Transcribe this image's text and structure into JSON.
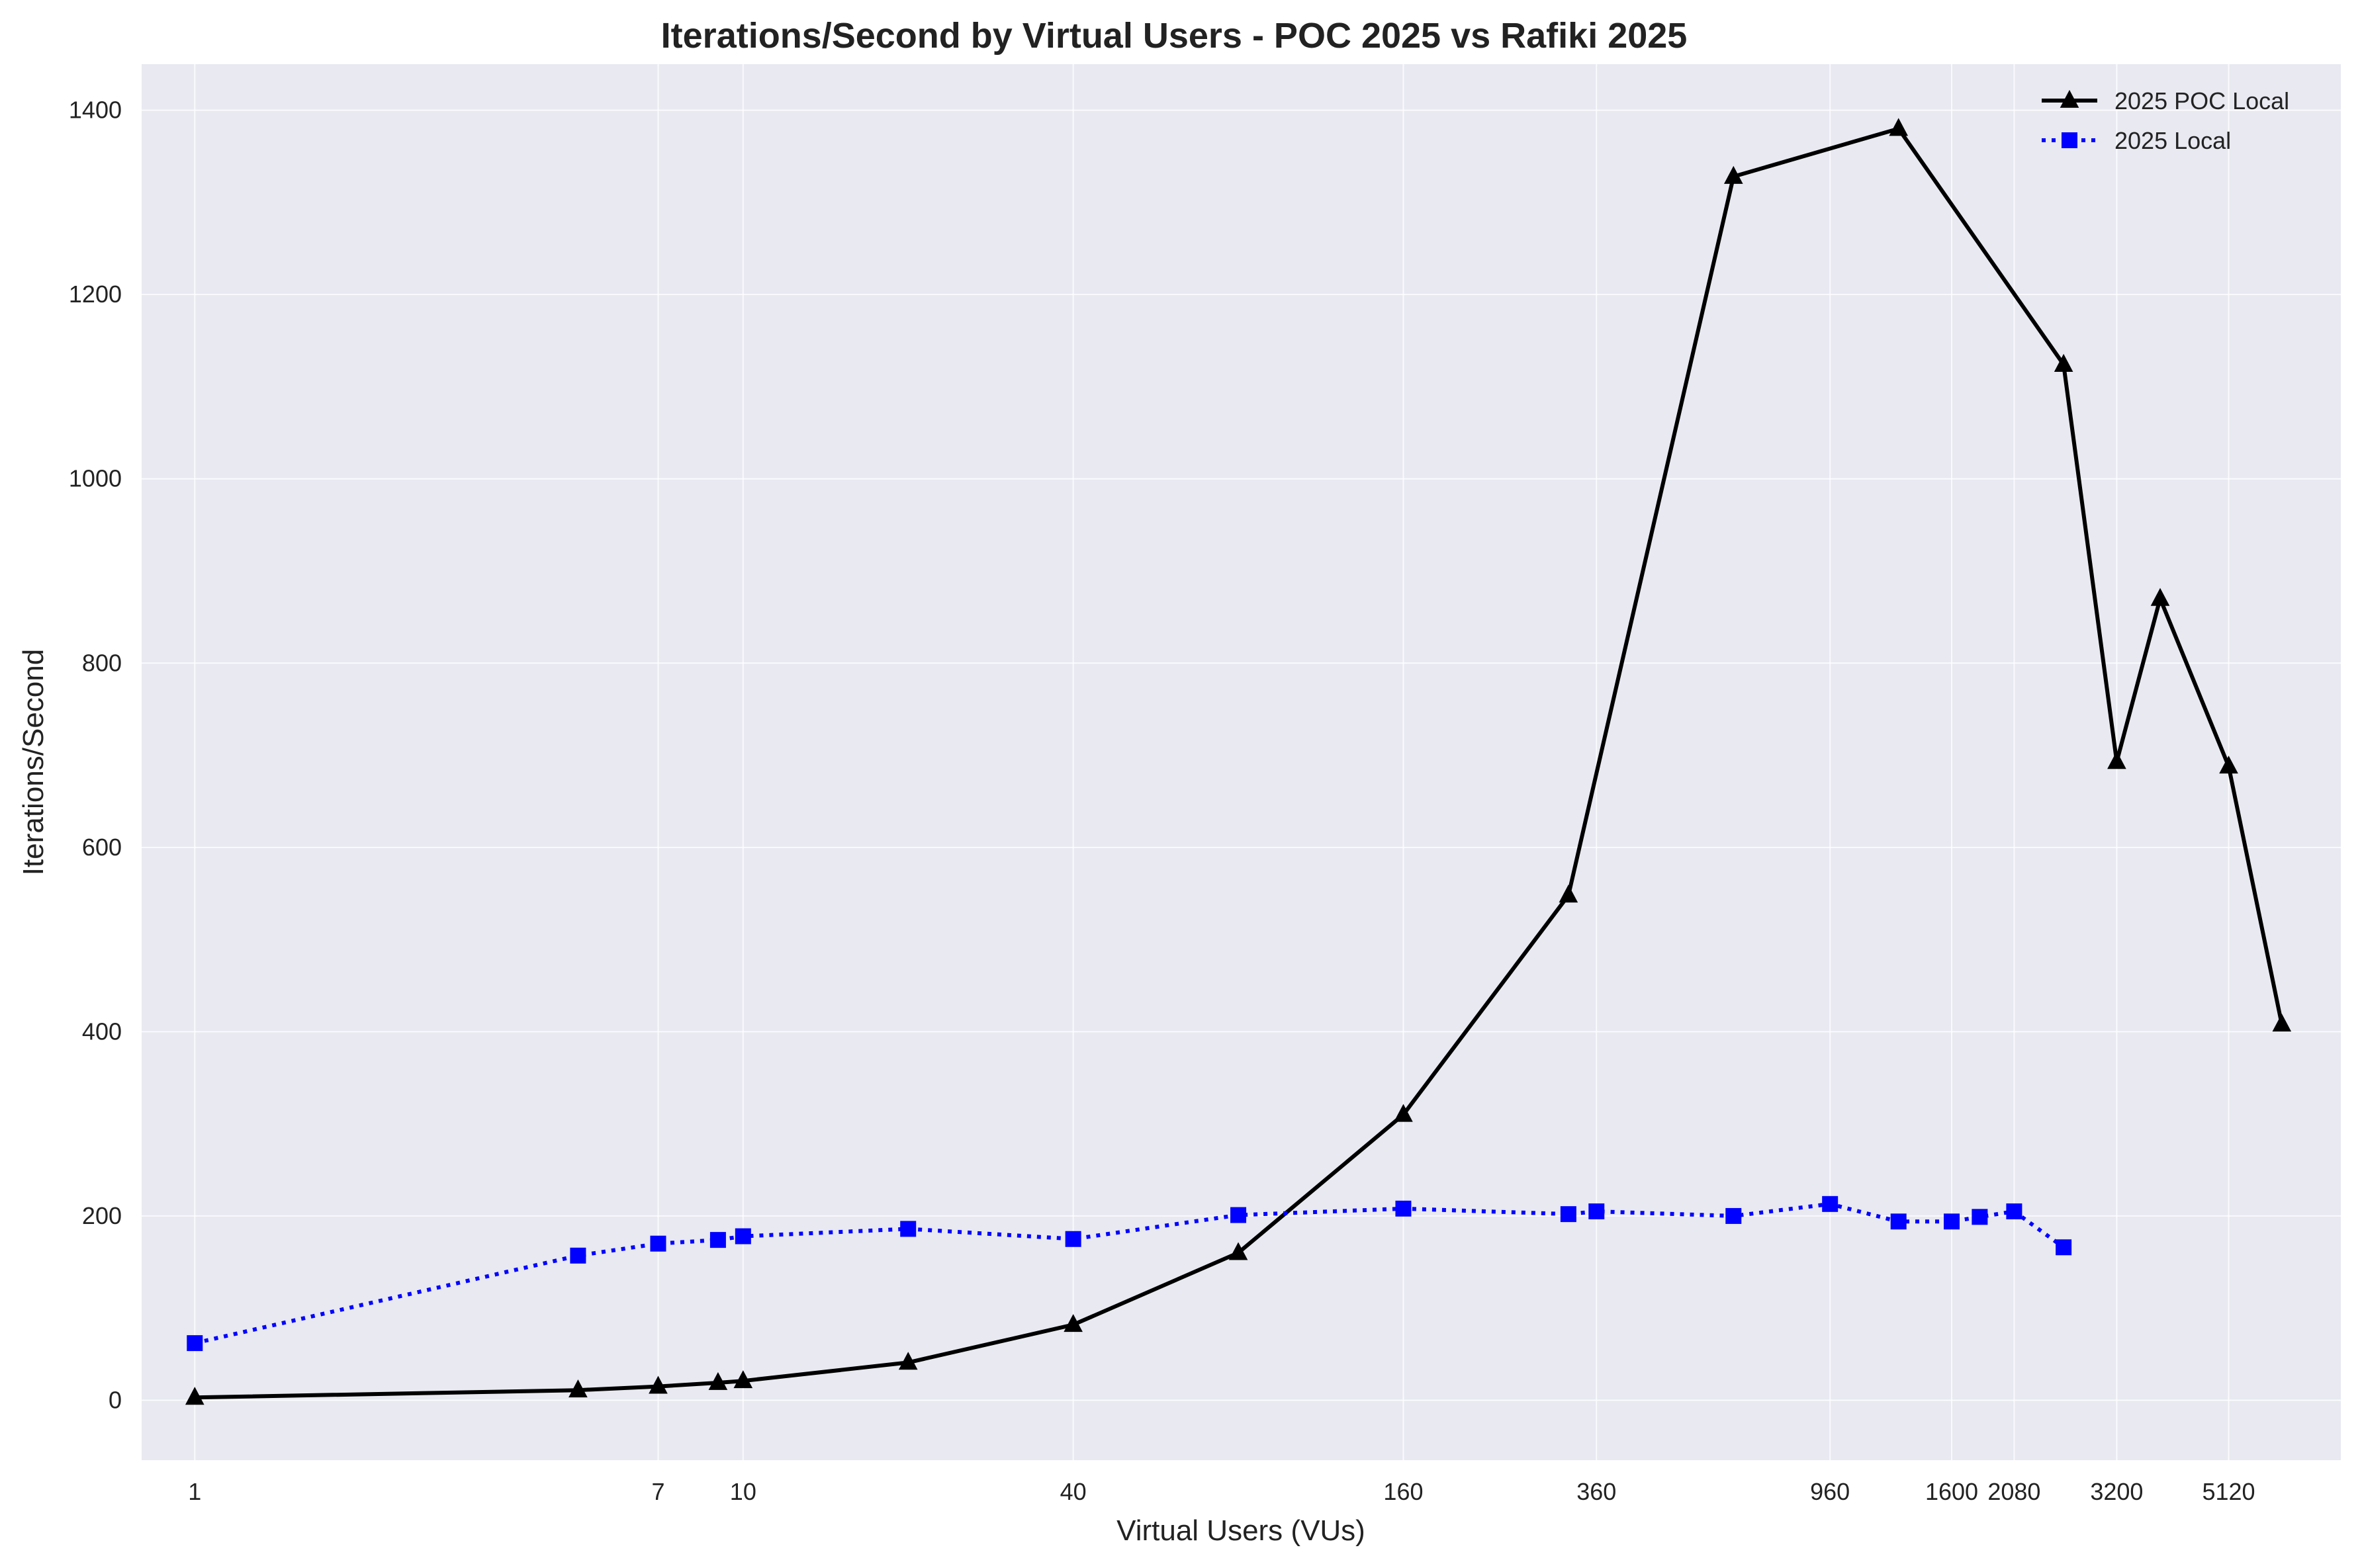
{
  "chart_data": {
    "type": "line",
    "title": "Iterations/Second by Virtual Users - POC 2025 vs Rafiki 2025",
    "xlabel": "Virtual Users (VUs)",
    "ylabel": "Iterations/Second",
    "x_scale": "log",
    "xlim": [
      0.8,
      8200
    ],
    "ylim": [
      -65,
      1450
    ],
    "x_ticks": [
      {
        "value": 1,
        "label": "1"
      },
      {
        "value": 7,
        "label": "7"
      },
      {
        "value": 10,
        "label": "10"
      },
      {
        "value": 40,
        "label": "40"
      },
      {
        "value": 160,
        "label": "160"
      },
      {
        "value": 360,
        "label": "360"
      },
      {
        "value": 960,
        "label": "960"
      },
      {
        "value": 1600,
        "label": "1600"
      },
      {
        "value": 2080,
        "label": "2080"
      },
      {
        "value": 3200,
        "label": "3200"
      },
      {
        "value": 5120,
        "label": "5120"
      }
    ],
    "y_ticks": [
      0,
      200,
      400,
      600,
      800,
      1000,
      1200,
      1400
    ],
    "y_tick_labels": [
      "0",
      "200",
      "400",
      "600",
      "800",
      "1000",
      "1200",
      "1400"
    ],
    "grid": true,
    "legend_position": "top-right",
    "series": [
      {
        "name": "2025 POC Local",
        "color": "#000000",
        "line_style": "solid",
        "marker": "triangle",
        "points": [
          {
            "x": 1,
            "y": 3
          },
          {
            "x": 5,
            "y": 11
          },
          {
            "x": 7,
            "y": 15
          },
          {
            "x": 9,
            "y": 19
          },
          {
            "x": 10,
            "y": 21
          },
          {
            "x": 20,
            "y": 41
          },
          {
            "x": 40,
            "y": 82
          },
          {
            "x": 80,
            "y": 160
          },
          {
            "x": 160,
            "y": 310
          },
          {
            "x": 320,
            "y": 548
          },
          {
            "x": 640,
            "y": 1328
          },
          {
            "x": 1280,
            "y": 1380
          },
          {
            "x": 2560,
            "y": 1124
          },
          {
            "x": 3200,
            "y": 693
          },
          {
            "x": 3840,
            "y": 870
          },
          {
            "x": 5120,
            "y": 688
          },
          {
            "x": 6400,
            "y": 408
          }
        ]
      },
      {
        "name": "2025 Local",
        "color": "#0000ff",
        "line_style": "dotted",
        "marker": "square",
        "points": [
          {
            "x": 1,
            "y": 62
          },
          {
            "x": 5,
            "y": 157
          },
          {
            "x": 7,
            "y": 170
          },
          {
            "x": 9,
            "y": 174
          },
          {
            "x": 10,
            "y": 178
          },
          {
            "x": 20,
            "y": 186
          },
          {
            "x": 40,
            "y": 175
          },
          {
            "x": 80,
            "y": 201
          },
          {
            "x": 160,
            "y": 208
          },
          {
            "x": 320,
            "y": 202
          },
          {
            "x": 360,
            "y": 205
          },
          {
            "x": 640,
            "y": 200
          },
          {
            "x": 960,
            "y": 213
          },
          {
            "x": 1280,
            "y": 194
          },
          {
            "x": 1600,
            "y": 194
          },
          {
            "x": 1800,
            "y": 199
          },
          {
            "x": 2080,
            "y": 205
          },
          {
            "x": 2560,
            "y": 166
          }
        ]
      }
    ]
  }
}
